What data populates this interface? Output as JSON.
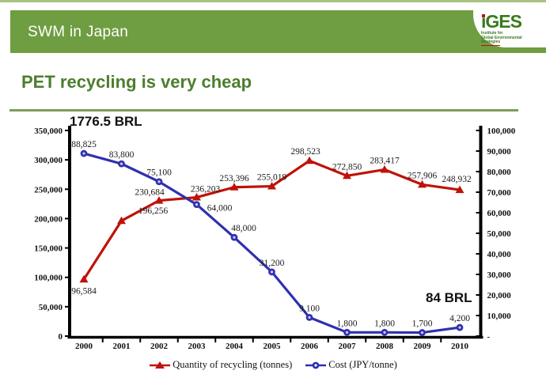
{
  "header": {
    "title": "SWM in Japan",
    "logo": {
      "name": "iGES",
      "line1": "Institute for",
      "line2": "Global Environmental",
      "line3": "Strategies"
    }
  },
  "page": {
    "title": "PET recycling is very cheap"
  },
  "colors": {
    "header_green": "#6f9d41",
    "title_green": "#4c7e2c",
    "rule_green": "#7d9c5d",
    "logo_green": "#3a7a1e",
    "logo_red": "#c01010",
    "series_red": "#bf1209",
    "series_blue": "#3030b0",
    "axis_black": "#000000"
  },
  "chart_data": {
    "type": "line",
    "x": [
      "2000",
      "2001",
      "2002",
      "2003",
      "2004",
      "2005",
      "2006",
      "2007",
      "2008",
      "2009",
      "2010"
    ],
    "series": [
      {
        "name": "Quantity of recycling (tonnes)",
        "axis": "left",
        "marker": "triangle",
        "color": "#bf1209",
        "values": [
          96584,
          196256,
          230684,
          236203,
          253396,
          255019,
          298523,
          272850,
          283417,
          257906,
          248932
        ],
        "labels": [
          "96,584",
          "196,256",
          "230,684",
          "236,203",
          "253,396",
          "255,019",
          "298,523",
          "272,850",
          "283,417",
          "257,906",
          "248,932"
        ]
      },
      {
        "name": "Cost (JPY/tonne)",
        "axis": "right",
        "marker": "circle",
        "color": "#3030b0",
        "values": [
          88825,
          83800,
          75100,
          64000,
          48000,
          31200,
          9100,
          1800,
          1800,
          1700,
          4200
        ],
        "labels": [
          "88,825",
          "83,800",
          "75,100",
          "64,000",
          "48,000",
          "31,200",
          "9,100",
          "1,800",
          "1,800",
          "1,700",
          "4,200"
        ]
      }
    ],
    "left_axis": {
      "min": 0,
      "max": 350000,
      "ticks": [
        "350,000",
        "300,000",
        "250,000",
        "200,000",
        "150,000",
        "100,000",
        "50,000",
        "0"
      ]
    },
    "right_axis": {
      "min": 0,
      "max": 100000,
      "ticks": [
        "100,000",
        "90,000",
        "80,000",
        "70,000",
        "60,000",
        "50,000",
        "40,000",
        "30,000",
        "20,000",
        "10,000",
        "-"
      ]
    },
    "grid": false,
    "legend_position": "bottom",
    "annotations": [
      {
        "text": "1776.5 BRL",
        "position": "top-left"
      },
      {
        "text": "84 BRL",
        "position": "bottom-right"
      }
    ]
  }
}
